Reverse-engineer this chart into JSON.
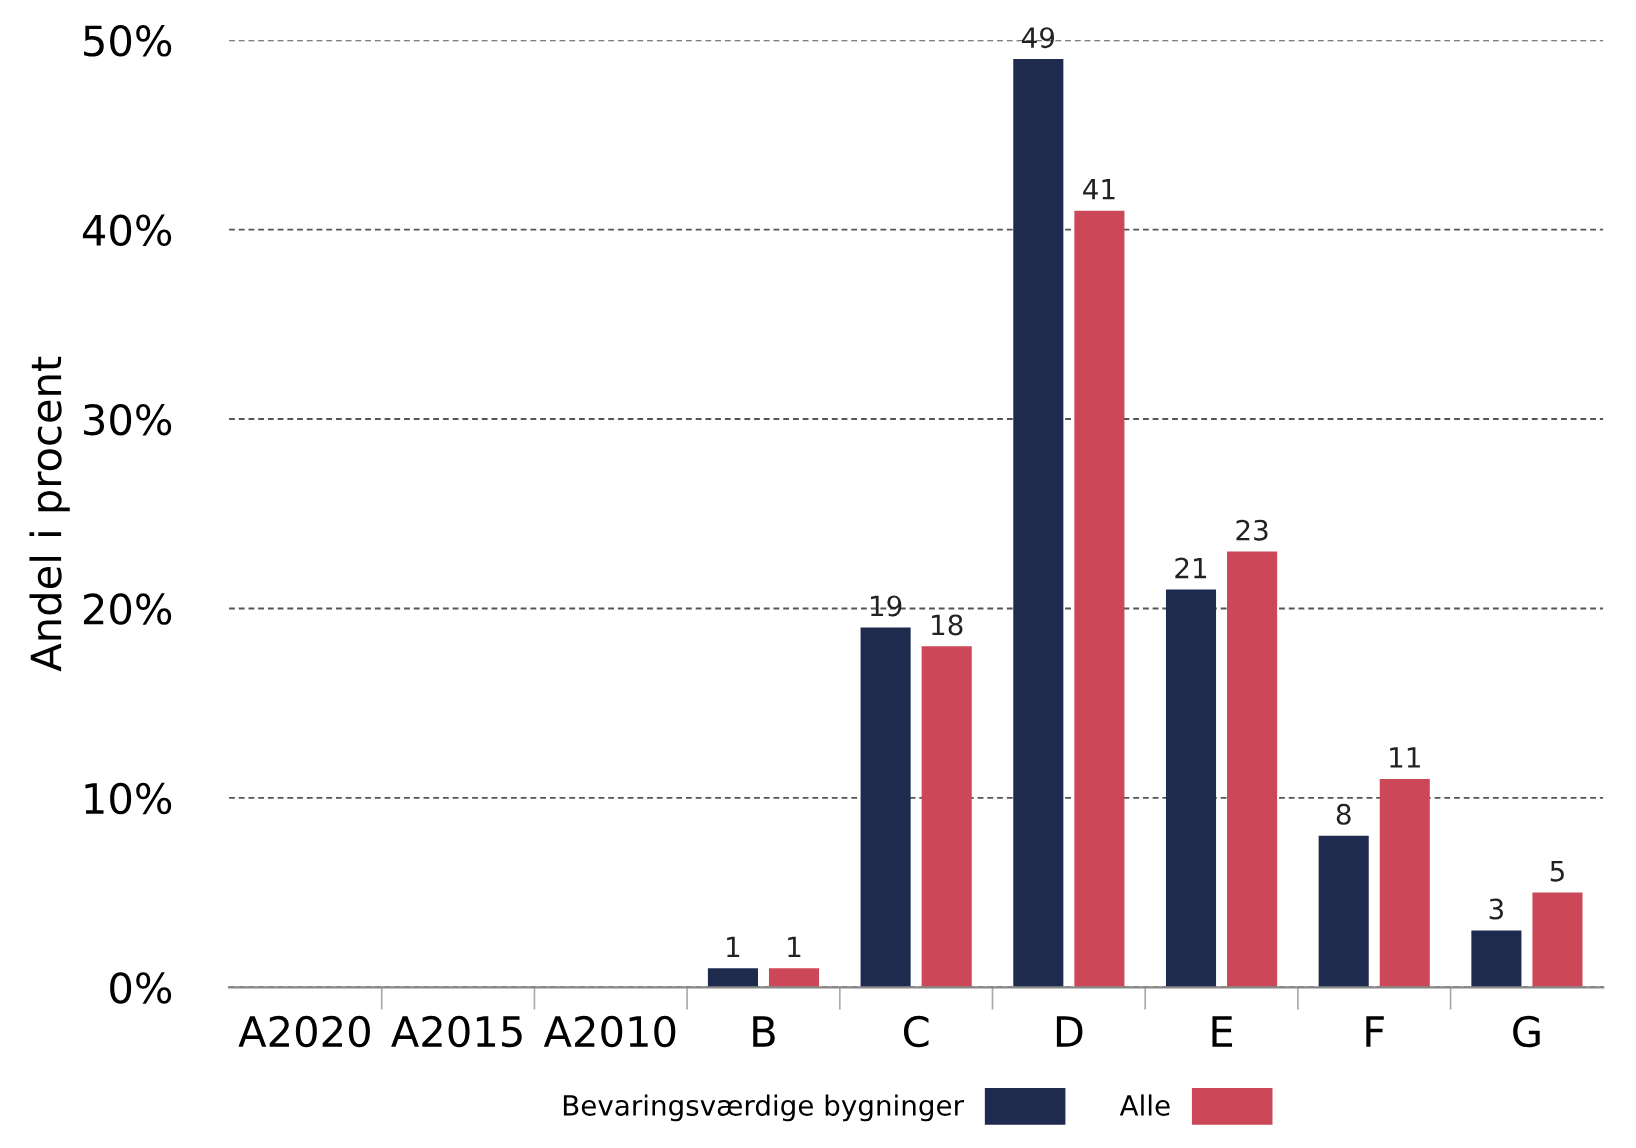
{
  "chart_data": {
    "type": "bar",
    "ylabel": "Andel i procent",
    "categories": [
      "A2020",
      "A2015",
      "A2010",
      "B",
      "C",
      "D",
      "E",
      "F",
      "G"
    ],
    "series": [
      {
        "name": "Bevaringsværdige bygninger",
        "color": "#1f2a4f",
        "values": [
          0,
          0,
          0,
          1,
          19,
          49,
          21,
          8,
          3
        ],
        "value_labels": [
          null,
          null,
          null,
          "1",
          "19",
          "49",
          "21",
          "8",
          "3"
        ]
      },
      {
        "name": "Alle",
        "color": "#cc4758",
        "values": [
          0,
          0,
          0,
          1,
          18,
          41,
          23,
          11,
          5
        ],
        "value_labels": [
          null,
          null,
          null,
          "1",
          "18",
          "41",
          "23",
          "11",
          "5"
        ]
      }
    ],
    "ylim": [
      0,
      50
    ],
    "yticks": [
      {
        "value": 0,
        "label": "0%"
      },
      {
        "value": 10,
        "label": "10%"
      },
      {
        "value": 20,
        "label": "20%"
      },
      {
        "value": 30,
        "label": "30%"
      },
      {
        "value": 40,
        "label": "40%"
      },
      {
        "value": 50,
        "label": "50%"
      }
    ],
    "grid": "y",
    "legend": "bottom"
  }
}
